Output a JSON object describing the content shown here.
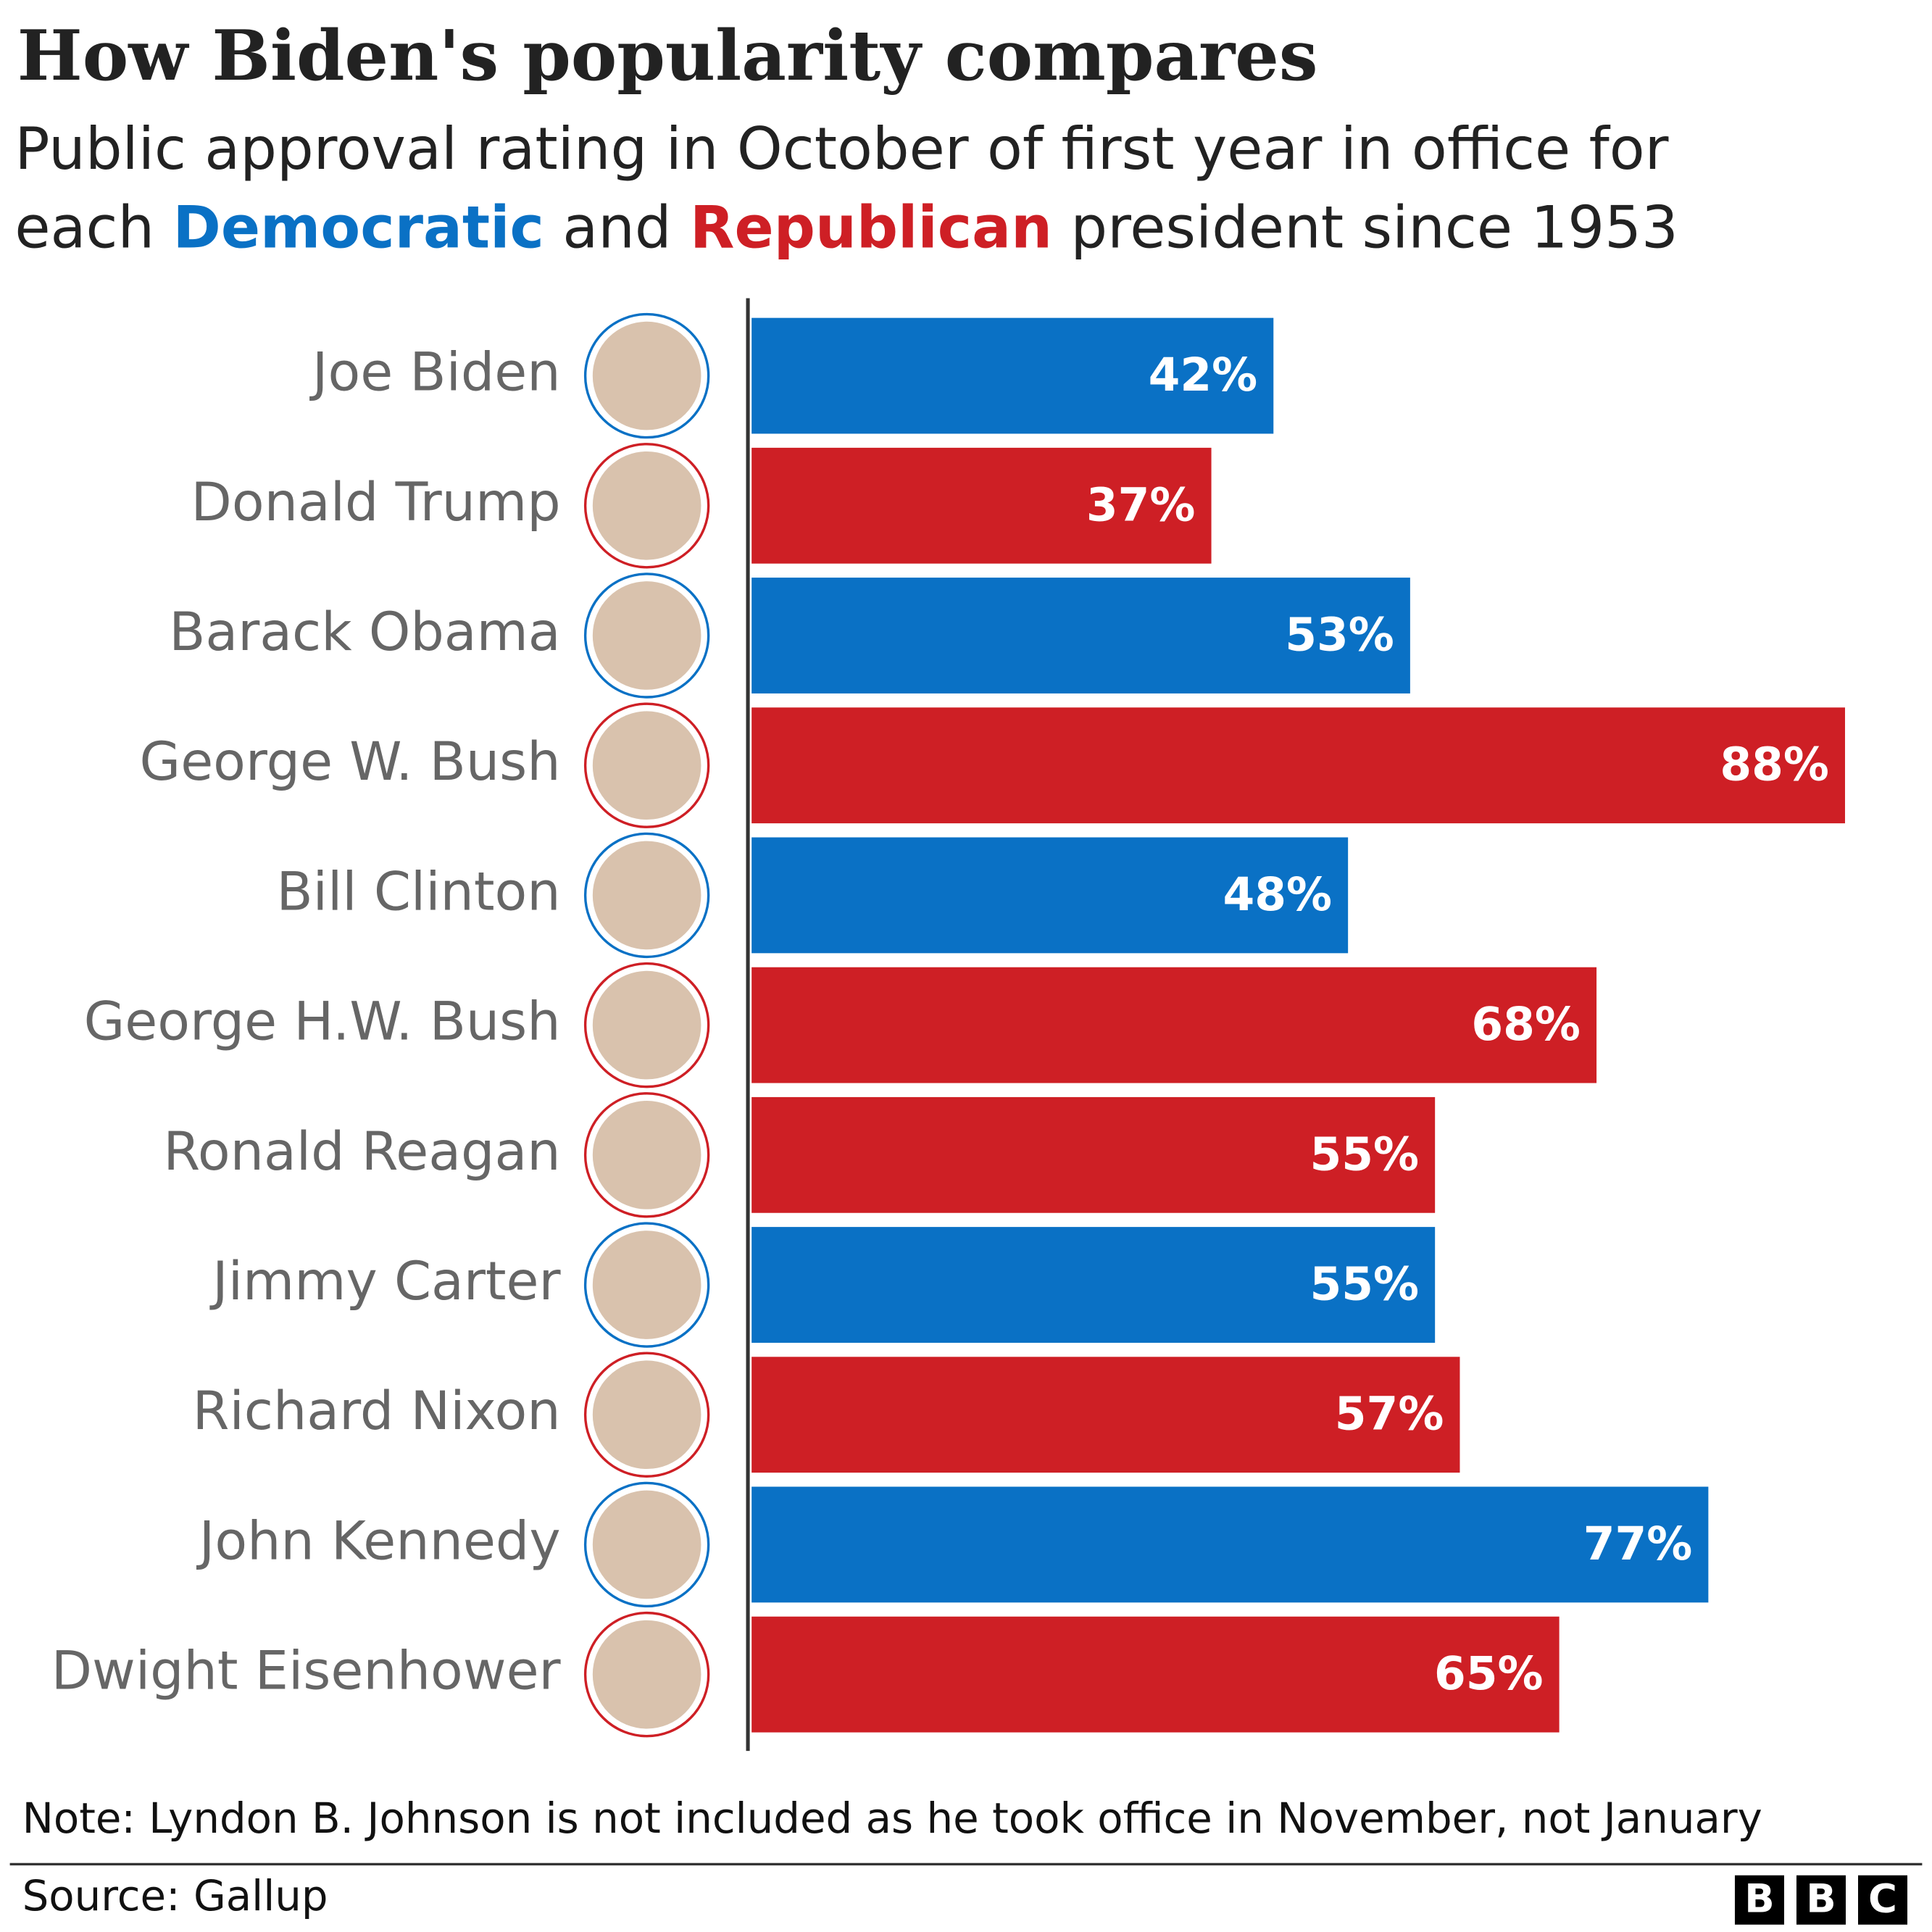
{
  "chart_data": {
    "type": "bar",
    "orientation": "horizontal",
    "title": "How Biden's popularity compares",
    "subtitle": {
      "line1": "Public approval rating in October of first year in office for",
      "prefix": "each",
      "connector": "and",
      "suffix": "president since 1953"
    },
    "legend": [
      {
        "name": "Democratic",
        "color": "#0a71c5"
      },
      {
        "name": "Republican",
        "color": "#ce1f25"
      }
    ],
    "categories": [
      "Joe Biden",
      "Donald Trump",
      "Barack Obama",
      "George W. Bush",
      "Bill Clinton",
      "George H.W. Bush",
      "Ronald Reagan",
      "Jimmy Carter",
      "Richard Nixon",
      "John Kennedy",
      "Dwight Eisenhower"
    ],
    "values": [
      42,
      37,
      53,
      88,
      48,
      68,
      55,
      55,
      57,
      77,
      65
    ],
    "value_labels": [
      "42%",
      "37%",
      "53%",
      "88%",
      "48%",
      "68%",
      "55%",
      "55%",
      "57%",
      "77%",
      "65%"
    ],
    "colors": [
      "#0a71c5",
      "#ce1f25",
      "#0a71c5",
      "#ce1f25",
      "#0a71c5",
      "#ce1f25",
      "#ce1f25",
      "#0a71c5",
      "#ce1f25",
      "#0a71c5",
      "#ce1f25"
    ],
    "xlim": [
      0,
      95
    ],
    "note": "Note: Lyndon B. Johnson is not included as he took office in November, not January",
    "source": "Source: Gallup",
    "logo": [
      "B",
      "B",
      "C"
    ]
  }
}
